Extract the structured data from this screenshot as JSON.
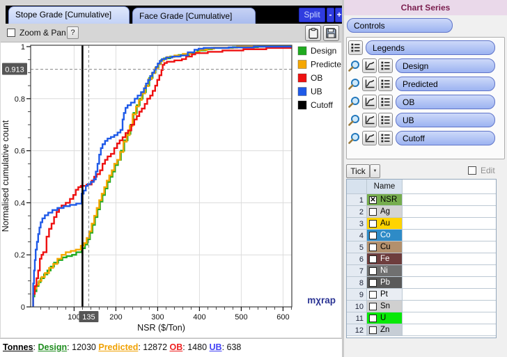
{
  "window": {
    "tabs": [
      {
        "label": "Stope Grade [Cumulative]",
        "active": true
      },
      {
        "label": "Face Grade [Cumulative]",
        "active": false
      }
    ],
    "split_label": "Split",
    "minus_label": "-",
    "plus_label": "+"
  },
  "toolbar": {
    "zoom_pan_label": "Zoom & Pan",
    "help_label": "?"
  },
  "chart_data": {
    "type": "line",
    "subtype": "cumulative-step",
    "xlabel": "NSR ($/Ton)",
    "ylabel": "Normalised cumulative count",
    "xlim": [
      -4,
      621
    ],
    "ylim": [
      0,
      1
    ],
    "xticks": [
      100,
      200,
      300,
      400,
      500,
      600
    ],
    "yticks": [
      0,
      0.2,
      0.4,
      0.6,
      0.8,
      1
    ],
    "x_minor_step": 20,
    "y_minor_step": 0.05,
    "grid": true,
    "legend_position": "right",
    "crosshair": {
      "x": 135,
      "y": 0.913,
      "x_label": "135",
      "y_label": "0.913"
    },
    "watermark": "mχrap",
    "series": [
      {
        "name": "Design",
        "color": "#1faa1f",
        "points": [
          [
            2,
            0.02
          ],
          [
            5,
            0.04
          ],
          [
            10,
            0.06
          ],
          [
            15,
            0.08
          ],
          [
            20,
            0.095
          ],
          [
            28,
            0.11
          ],
          [
            36,
            0.125
          ],
          [
            44,
            0.14
          ],
          [
            52,
            0.155
          ],
          [
            62,
            0.17
          ],
          [
            72,
            0.18
          ],
          [
            82,
            0.19
          ],
          [
            95,
            0.195
          ],
          [
            105,
            0.2
          ],
          [
            118,
            0.21
          ],
          [
            126,
            0.225
          ],
          [
            132,
            0.24
          ],
          [
            138,
            0.26
          ],
          [
            144,
            0.285
          ],
          [
            150,
            0.315
          ],
          [
            156,
            0.345
          ],
          [
            162,
            0.375
          ],
          [
            168,
            0.405
          ],
          [
            174,
            0.43
          ],
          [
            180,
            0.455
          ],
          [
            186,
            0.48
          ],
          [
            192,
            0.5
          ],
          [
            198,
            0.52
          ],
          [
            205,
            0.545
          ],
          [
            212,
            0.565
          ],
          [
            220,
            0.6
          ],
          [
            228,
            0.64
          ],
          [
            235,
            0.665
          ],
          [
            242,
            0.7
          ],
          [
            250,
            0.745
          ],
          [
            257,
            0.775
          ],
          [
            264,
            0.8
          ],
          [
            272,
            0.825
          ],
          [
            280,
            0.85
          ],
          [
            288,
            0.88
          ],
          [
            295,
            0.9
          ],
          [
            302,
            0.92
          ],
          [
            308,
            0.935
          ],
          [
            315,
            0.948
          ],
          [
            330,
            0.955
          ],
          [
            350,
            0.962
          ],
          [
            375,
            0.968
          ],
          [
            395,
            0.975
          ],
          [
            415,
            0.985
          ],
          [
            430,
            0.99
          ],
          [
            480,
            0.995
          ],
          [
            540,
            0.998
          ],
          [
            600,
            1
          ]
        ]
      },
      {
        "name": "Predicted",
        "color": "#f5a700",
        "points": [
          [
            2,
            0.025
          ],
          [
            5,
            0.05
          ],
          [
            10,
            0.07
          ],
          [
            16,
            0.085
          ],
          [
            22,
            0.1
          ],
          [
            30,
            0.115
          ],
          [
            40,
            0.13
          ],
          [
            50,
            0.15
          ],
          [
            60,
            0.165
          ],
          [
            70,
            0.185
          ],
          [
            80,
            0.2
          ],
          [
            92,
            0.21
          ],
          [
            104,
            0.215
          ],
          [
            116,
            0.22
          ],
          [
            124,
            0.235
          ],
          [
            130,
            0.245
          ],
          [
            136,
            0.265
          ],
          [
            142,
            0.29
          ],
          [
            148,
            0.32
          ],
          [
            154,
            0.35
          ],
          [
            160,
            0.38
          ],
          [
            166,
            0.41
          ],
          [
            172,
            0.435
          ],
          [
            178,
            0.46
          ],
          [
            184,
            0.485
          ],
          [
            190,
            0.505
          ],
          [
            196,
            0.525
          ],
          [
            203,
            0.55
          ],
          [
            210,
            0.565
          ],
          [
            218,
            0.595
          ],
          [
            226,
            0.635
          ],
          [
            233,
            0.66
          ],
          [
            240,
            0.695
          ],
          [
            248,
            0.74
          ],
          [
            255,
            0.77
          ],
          [
            262,
            0.795
          ],
          [
            270,
            0.82
          ],
          [
            278,
            0.848
          ],
          [
            286,
            0.875
          ],
          [
            294,
            0.898
          ],
          [
            301,
            0.918
          ],
          [
            307,
            0.932
          ],
          [
            314,
            0.946
          ],
          [
            322,
            0.953
          ],
          [
            340,
            0.96
          ],
          [
            360,
            0.966
          ],
          [
            380,
            0.972
          ],
          [
            400,
            0.978
          ],
          [
            418,
            0.988
          ],
          [
            435,
            0.992
          ],
          [
            490,
            0.996
          ],
          [
            600,
            1
          ]
        ]
      },
      {
        "name": "OB",
        "color": "#ee1111",
        "points": [
          [
            2,
            0.02
          ],
          [
            6,
            0.05
          ],
          [
            10,
            0.08
          ],
          [
            14,
            0.11
          ],
          [
            18,
            0.14
          ],
          [
            22,
            0.185
          ],
          [
            26,
            0.2
          ],
          [
            34,
            0.21
          ],
          [
            40,
            0.27
          ],
          [
            46,
            0.3
          ],
          [
            52,
            0.32
          ],
          [
            58,
            0.345
          ],
          [
            64,
            0.365
          ],
          [
            70,
            0.38
          ],
          [
            80,
            0.39
          ],
          [
            90,
            0.4
          ],
          [
            98,
            0.415
          ],
          [
            104,
            0.43
          ],
          [
            110,
            0.45
          ],
          [
            116,
            0.46
          ],
          [
            130,
            0.465
          ],
          [
            142,
            0.47
          ],
          [
            148,
            0.485
          ],
          [
            154,
            0.5
          ],
          [
            162,
            0.51
          ],
          [
            168,
            0.525
          ],
          [
            174,
            0.55
          ],
          [
            180,
            0.565
          ],
          [
            188,
            0.578
          ],
          [
            196,
            0.588
          ],
          [
            203,
            0.61
          ],
          [
            209,
            0.628
          ],
          [
            216,
            0.64
          ],
          [
            223,
            0.652
          ],
          [
            229,
            0.668
          ],
          [
            237,
            0.678
          ],
          [
            244,
            0.7
          ],
          [
            250,
            0.72
          ],
          [
            256,
            0.733
          ],
          [
            262,
            0.75
          ],
          [
            269,
            0.762
          ],
          [
            275,
            0.78
          ],
          [
            282,
            0.8
          ],
          [
            288,
            0.812
          ],
          [
            294,
            0.83
          ],
          [
            299,
            0.85
          ],
          [
            304,
            0.872
          ],
          [
            309,
            0.89
          ],
          [
            312,
            0.91
          ],
          [
            316,
            0.93
          ],
          [
            322,
            0.937
          ],
          [
            340,
            0.942
          ],
          [
            358,
            0.947
          ],
          [
            368,
            0.952
          ],
          [
            382,
            0.962
          ],
          [
            390,
            0.97
          ],
          [
            420,
            0.975
          ],
          [
            455,
            0.98
          ],
          [
            505,
            0.985
          ],
          [
            560,
            0.99
          ],
          [
            600,
            0.995
          ]
        ]
      },
      {
        "name": "UB",
        "color": "#1f5ae8",
        "points": [
          [
            2,
            0.03
          ],
          [
            4,
            0.09
          ],
          [
            6,
            0.14
          ],
          [
            8,
            0.18
          ],
          [
            11,
            0.22
          ],
          [
            14,
            0.25
          ],
          [
            17,
            0.28
          ],
          [
            20,
            0.305
          ],
          [
            24,
            0.325
          ],
          [
            30,
            0.34
          ],
          [
            38,
            0.352
          ],
          [
            48,
            0.362
          ],
          [
            60,
            0.372
          ],
          [
            75,
            0.38
          ],
          [
            90,
            0.387
          ],
          [
            105,
            0.392
          ],
          [
            118,
            0.397
          ],
          [
            123,
            0.435
          ],
          [
            128,
            0.447
          ],
          [
            133,
            0.465
          ],
          [
            140,
            0.472
          ],
          [
            147,
            0.48
          ],
          [
            152,
            0.49
          ],
          [
            156,
            0.52
          ],
          [
            160,
            0.55
          ],
          [
            164,
            0.585
          ],
          [
            168,
            0.61
          ],
          [
            174,
            0.625
          ],
          [
            180,
            0.638
          ],
          [
            188,
            0.647
          ],
          [
            196,
            0.653
          ],
          [
            204,
            0.66
          ],
          [
            211,
            0.67
          ],
          [
            216,
            0.68
          ],
          [
            219,
            0.72
          ],
          [
            223,
            0.745
          ],
          [
            228,
            0.765
          ],
          [
            236,
            0.775
          ],
          [
            245,
            0.785
          ],
          [
            252,
            0.8
          ],
          [
            260,
            0.812
          ],
          [
            267,
            0.825
          ],
          [
            272,
            0.84
          ],
          [
            277,
            0.858
          ],
          [
            282,
            0.872
          ],
          [
            287,
            0.887
          ],
          [
            292,
            0.9
          ],
          [
            296,
            0.912
          ],
          [
            300,
            0.922
          ],
          [
            305,
            0.935
          ],
          [
            310,
            0.945
          ],
          [
            320,
            0.952
          ],
          [
            335,
            0.958
          ],
          [
            355,
            0.962
          ],
          [
            372,
            0.966
          ],
          [
            388,
            0.978
          ],
          [
            398,
            0.988
          ],
          [
            410,
            0.992
          ],
          [
            470,
            0.995
          ],
          [
            530,
            0.997
          ],
          [
            600,
            1
          ]
        ]
      },
      {
        "name": "Cutoff",
        "color": "#000000",
        "vline_x": 120
      }
    ]
  },
  "status": {
    "label": "Tonnes",
    "items": [
      {
        "label": "Design",
        "value": "12030",
        "color": "#1e8c1e"
      },
      {
        "label": "Predicted",
        "value": "12872",
        "color": "#f0a000"
      },
      {
        "label": "OB",
        "value": "1480",
        "color": "#ee2020"
      },
      {
        "label": "UB",
        "value": "638",
        "color": "#4343f5"
      }
    ]
  },
  "panel": {
    "header": "Chart Series",
    "controls_label": "Controls",
    "legends_label": "Legends",
    "series_buttons": [
      "Design",
      "Predicted",
      "OB",
      "UB",
      "Cutoff"
    ],
    "tick_label": "Tick",
    "edit_label": "Edit",
    "table": {
      "name_header": "Name",
      "rows": [
        {
          "n": "1",
          "name": "NSR",
          "checked": true,
          "bg": "#76ad4e",
          "fg": "#000000"
        },
        {
          "n": "2",
          "name": "Ag",
          "checked": false,
          "bg": "#d4d4d4",
          "fg": "#000000"
        },
        {
          "n": "3",
          "name": "Au",
          "checked": false,
          "bg": "#ffd400",
          "fg": "#000000"
        },
        {
          "n": "4",
          "name": "Co",
          "checked": false,
          "bg": "#2e8bc7",
          "fg": "#ffffff"
        },
        {
          "n": "5",
          "name": "Cu",
          "checked": false,
          "bg": "#b3906d",
          "fg": "#000000"
        },
        {
          "n": "6",
          "name": "Fe",
          "checked": false,
          "bg": "#6e3d3d",
          "fg": "#ffffff"
        },
        {
          "n": "7",
          "name": "Ni",
          "checked": false,
          "bg": "#707070",
          "fg": "#ffffff"
        },
        {
          "n": "8",
          "name": "Pb",
          "checked": false,
          "bg": "#5a5a5a",
          "fg": "#ffffff"
        },
        {
          "n": "9",
          "name": "Pt",
          "checked": false,
          "bg": "#e9edf3",
          "fg": "#000000"
        },
        {
          "n": "10",
          "name": "Sn",
          "checked": false,
          "bg": "#d0d0d0",
          "fg": "#000000"
        },
        {
          "n": "11",
          "name": "U",
          "checked": false,
          "bg": "#07e807",
          "fg": "#000000"
        },
        {
          "n": "12",
          "name": "Zn",
          "checked": false,
          "bg": "#c6cdd5",
          "fg": "#000000"
        }
      ]
    }
  }
}
